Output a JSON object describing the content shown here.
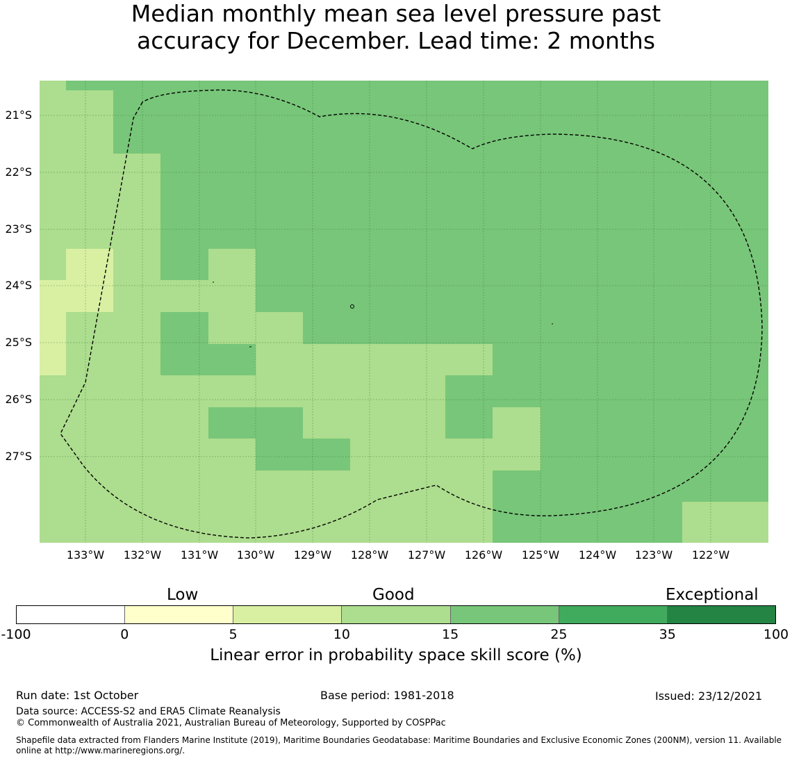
{
  "title": {
    "line1": "Median monthly mean sea level pressure past",
    "line2": "accuracy for December. Lead time: 2 months"
  },
  "map": {
    "lat_labels": [
      "21°S",
      "22°S",
      "23°S",
      "24°S",
      "25°S",
      "26°S",
      "27°S"
    ],
    "lon_labels": [
      "133°W",
      "132°W",
      "131°W",
      "130°W",
      "129°W",
      "128°W",
      "127°W",
      "126°W",
      "125°W",
      "124°W",
      "123°W",
      "122°W"
    ],
    "colors": {
      "5-10": "#d9f0a3",
      "10-15": "#addd8e",
      "15-25": "#78c679"
    }
  },
  "colorbar": {
    "categories": [
      "Low",
      "Good",
      "Exceptional"
    ],
    "ticks": [
      "-100",
      "0",
      "5",
      "10",
      "15",
      "25",
      "35",
      "100"
    ],
    "colors": [
      "#ffffff",
      "#ffffcc",
      "#d9f0a3",
      "#addd8e",
      "#78c679",
      "#41ab5d",
      "#238443"
    ],
    "label": "Linear error in probability space skill score (%)"
  },
  "footer": {
    "run_date": "Run date: 1st October",
    "base_period": "Base period: 1981-2018",
    "issued": "Issued: 23/12/2021",
    "data_source": "Data source: ACCESS-S2 and ERA5 Climate Reanalysis",
    "copyright": "© Commonwealth of Australia 2021, Australian Bureau of Meteorology, Supported by COSPPac",
    "shapefile_line1": "Shapefile data extracted from Flanders Marine Institute (2019), Maritime Boundaries Geodatabase: Maritime Boundaries and Exclusive Economic Zones (200NM), version 11. Available",
    "shapefile_line2": "online at http://www.marineregions.org/."
  }
}
